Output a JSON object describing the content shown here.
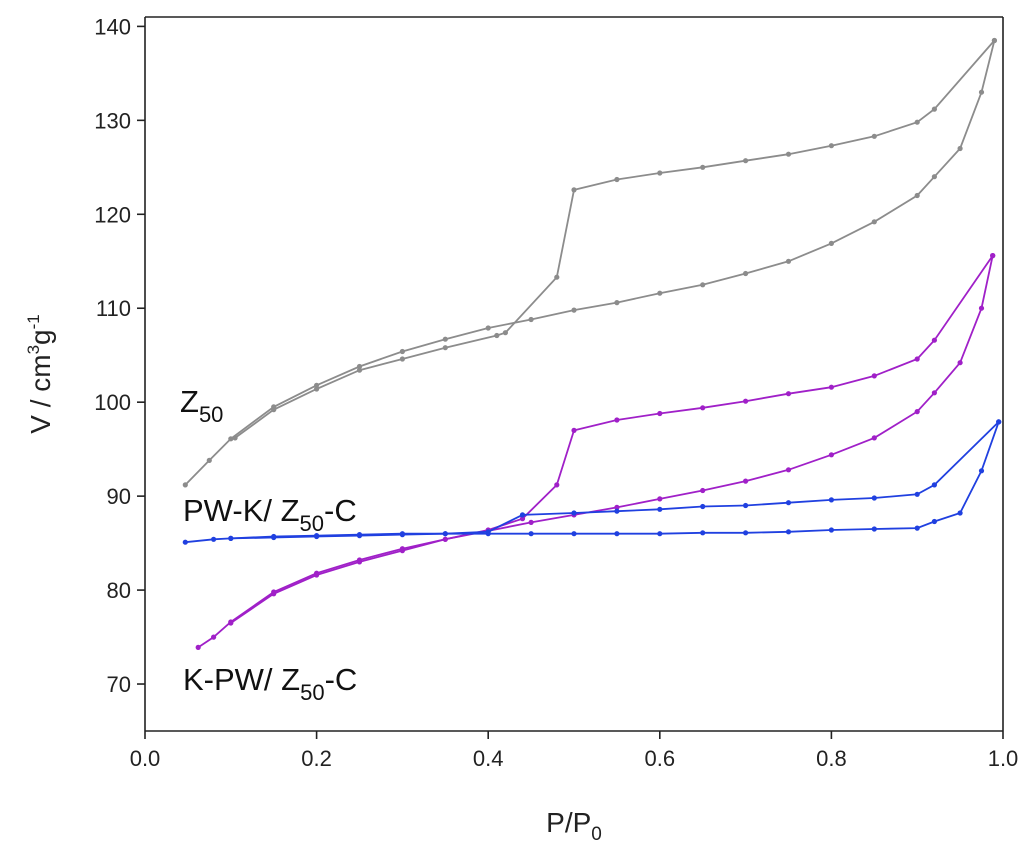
{
  "chart_data": {
    "type": "line",
    "xlabel": {
      "main": "P/P",
      "sub": "0"
    },
    "ylabel": {
      "main": "V / cm",
      "sup1": "3",
      "mid": "g",
      "sup2": "-1"
    },
    "xlim": [
      0.0,
      1.0
    ],
    "ylim": [
      65,
      141
    ],
    "x_ticks": [
      "0.0",
      "0.2",
      "0.4",
      "0.6",
      "0.8",
      "1.0"
    ],
    "y_ticks": [
      "70",
      "80",
      "90",
      "100",
      "110",
      "120",
      "130",
      "140"
    ],
    "x_tick_values": [
      0.0,
      0.2,
      0.4,
      0.6,
      0.8,
      1.0
    ],
    "y_tick_values": [
      70,
      80,
      90,
      100,
      110,
      120,
      130,
      140
    ],
    "grid": false,
    "legend": "none",
    "series": [
      {
        "name_main": "Z",
        "name_sub": "50",
        "name_suffix": "",
        "color": "#8c8c8c",
        "adsorption": [
          [
            0.047,
            91.2
          ],
          [
            0.075,
            93.8
          ],
          [
            0.1,
            96.1
          ],
          [
            0.15,
            99.5
          ],
          [
            0.2,
            101.8
          ],
          [
            0.25,
            103.8
          ],
          [
            0.3,
            105.4
          ],
          [
            0.35,
            106.7
          ],
          [
            0.4,
            107.9
          ],
          [
            0.45,
            108.8
          ],
          [
            0.5,
            109.8
          ],
          [
            0.55,
            110.6
          ],
          [
            0.6,
            111.6
          ],
          [
            0.65,
            112.5
          ],
          [
            0.7,
            113.7
          ],
          [
            0.75,
            115.0
          ],
          [
            0.8,
            116.9
          ],
          [
            0.85,
            119.2
          ],
          [
            0.9,
            122.0
          ],
          [
            0.92,
            124.0
          ],
          [
            0.95,
            127.0
          ],
          [
            0.975,
            133.0
          ],
          [
            0.99,
            138.5
          ]
        ],
        "desorption": [
          [
            0.99,
            138.5
          ],
          [
            0.92,
            131.2
          ],
          [
            0.9,
            129.8
          ],
          [
            0.85,
            128.3
          ],
          [
            0.8,
            127.3
          ],
          [
            0.75,
            126.4
          ],
          [
            0.7,
            125.7
          ],
          [
            0.65,
            125.0
          ],
          [
            0.6,
            124.4
          ],
          [
            0.55,
            123.7
          ],
          [
            0.5,
            122.6
          ],
          [
            0.48,
            113.3
          ],
          [
            0.42,
            107.4
          ],
          [
            0.41,
            107.1
          ],
          [
            0.35,
            105.8
          ],
          [
            0.3,
            104.6
          ],
          [
            0.25,
            103.4
          ],
          [
            0.2,
            101.4
          ],
          [
            0.15,
            99.2
          ],
          [
            0.105,
            96.2
          ]
        ]
      },
      {
        "name_main": "K-PW/ Z",
        "name_sub": "50",
        "name_suffix": "-C",
        "color": "#a020c8",
        "adsorption": [
          [
            0.062,
            73.9
          ],
          [
            0.08,
            75.0
          ],
          [
            0.1,
            76.6
          ],
          [
            0.15,
            79.8
          ],
          [
            0.2,
            81.8
          ],
          [
            0.25,
            83.2
          ],
          [
            0.3,
            84.4
          ],
          [
            0.35,
            85.4
          ],
          [
            0.4,
            86.3
          ],
          [
            0.45,
            87.2
          ],
          [
            0.5,
            88.0
          ],
          [
            0.55,
            88.8
          ],
          [
            0.6,
            89.7
          ],
          [
            0.65,
            90.6
          ],
          [
            0.7,
            91.6
          ],
          [
            0.75,
            92.8
          ],
          [
            0.8,
            94.4
          ],
          [
            0.85,
            96.2
          ],
          [
            0.9,
            99.0
          ],
          [
            0.92,
            101.0
          ],
          [
            0.95,
            104.2
          ],
          [
            0.975,
            110.0
          ],
          [
            0.988,
            115.6
          ]
        ],
        "desorption": [
          [
            0.988,
            115.6
          ],
          [
            0.92,
            106.6
          ],
          [
            0.9,
            104.6
          ],
          [
            0.85,
            102.8
          ],
          [
            0.8,
            101.6
          ],
          [
            0.75,
            100.9
          ],
          [
            0.7,
            100.1
          ],
          [
            0.65,
            99.4
          ],
          [
            0.6,
            98.8
          ],
          [
            0.55,
            98.1
          ],
          [
            0.5,
            97.0
          ],
          [
            0.48,
            91.2
          ],
          [
            0.44,
            87.6
          ],
          [
            0.4,
            86.4
          ],
          [
            0.35,
            85.4
          ],
          [
            0.3,
            84.2
          ],
          [
            0.25,
            83.0
          ],
          [
            0.2,
            81.6
          ],
          [
            0.15,
            79.6
          ],
          [
            0.1,
            76.5
          ]
        ]
      },
      {
        "name_main": "PW-K/ Z",
        "name_sub": "50",
        "name_suffix": "-C",
        "color": "#2040e0",
        "adsorption": [
          [
            0.047,
            85.1
          ],
          [
            0.08,
            85.4
          ],
          [
            0.1,
            85.5
          ],
          [
            0.15,
            85.6
          ],
          [
            0.2,
            85.7
          ],
          [
            0.25,
            85.8
          ],
          [
            0.3,
            85.9
          ],
          [
            0.35,
            86.0
          ],
          [
            0.4,
            86.0
          ],
          [
            0.45,
            86.0
          ],
          [
            0.5,
            86.0
          ],
          [
            0.55,
            86.0
          ],
          [
            0.6,
            86.0
          ],
          [
            0.65,
            86.1
          ],
          [
            0.7,
            86.1
          ],
          [
            0.75,
            86.2
          ],
          [
            0.8,
            86.4
          ],
          [
            0.85,
            86.5
          ],
          [
            0.9,
            86.6
          ],
          [
            0.92,
            87.3
          ],
          [
            0.95,
            88.2
          ],
          [
            0.975,
            92.7
          ],
          [
            0.995,
            97.9
          ]
        ],
        "desorption": [
          [
            0.995,
            97.9
          ],
          [
            0.92,
            91.2
          ],
          [
            0.9,
            90.2
          ],
          [
            0.85,
            89.8
          ],
          [
            0.8,
            89.6
          ],
          [
            0.75,
            89.3
          ],
          [
            0.7,
            89.0
          ],
          [
            0.65,
            88.9
          ],
          [
            0.6,
            88.6
          ],
          [
            0.55,
            88.4
          ],
          [
            0.5,
            88.2
          ],
          [
            0.44,
            88.0
          ],
          [
            0.4,
            86.2
          ],
          [
            0.35,
            86.0
          ],
          [
            0.3,
            86.0
          ],
          [
            0.25,
            85.9
          ],
          [
            0.2,
            85.8
          ],
          [
            0.15,
            85.7
          ],
          [
            0.1,
            85.5
          ]
        ]
      }
    ]
  }
}
